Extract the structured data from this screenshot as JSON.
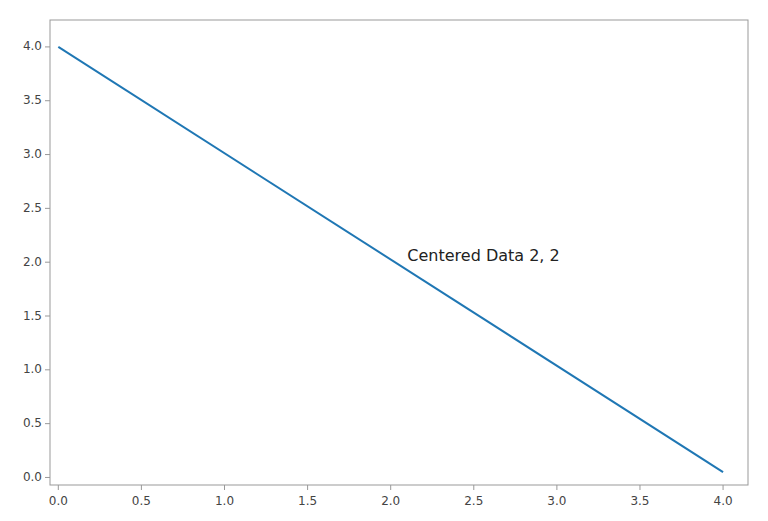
{
  "chart_data": {
    "type": "line",
    "x": [
      0,
      4
    ],
    "values": [
      4,
      0.05
    ],
    "color": "#1f77b4",
    "annotations": [
      {
        "text": "Centered Data 2, 2",
        "x": 2.1,
        "y": 2.05
      }
    ],
    "xlim": [
      -0.05,
      4.15
    ],
    "ylim": [
      -0.07,
      4.25
    ],
    "xticks": [
      {
        "value": 0.0,
        "label": "0.0"
      },
      {
        "value": 0.5,
        "label": "0.5"
      },
      {
        "value": 1.0,
        "label": "1.0"
      },
      {
        "value": 1.5,
        "label": "1.5"
      },
      {
        "value": 2.0,
        "label": "2.0"
      },
      {
        "value": 2.5,
        "label": "2.5"
      },
      {
        "value": 3.0,
        "label": "3.0"
      },
      {
        "value": 3.5,
        "label": "3.5"
      },
      {
        "value": 4.0,
        "label": "4.0"
      }
    ],
    "yticks": [
      {
        "value": 0.0,
        "label": "0.0"
      },
      {
        "value": 0.5,
        "label": "0.5"
      },
      {
        "value": 1.0,
        "label": "1.0"
      },
      {
        "value": 1.5,
        "label": "1.5"
      },
      {
        "value": 2.0,
        "label": "2.0"
      },
      {
        "value": 2.5,
        "label": "2.5"
      },
      {
        "value": 3.0,
        "label": "3.0"
      },
      {
        "value": 3.5,
        "label": "3.5"
      },
      {
        "value": 4.0,
        "label": "4.0"
      }
    ],
    "grid": false
  }
}
